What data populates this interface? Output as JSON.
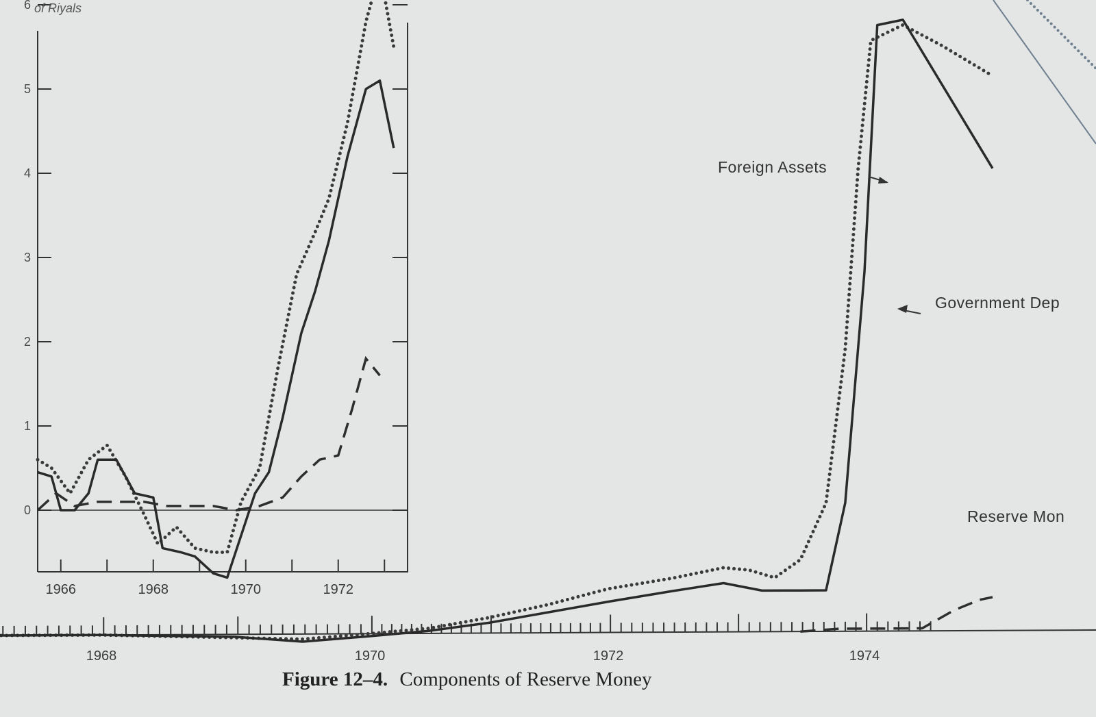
{
  "caption": {
    "label": "Figure 12–4.",
    "title": "Components of Reserve Money"
  },
  "chart_data": [
    {
      "type": "line",
      "panel": "inset",
      "ylabel_fragment": "of Riyals",
      "ylim": [
        -0.75,
        6
      ],
      "yticks": [
        "0",
        "1",
        "2",
        "3",
        "4",
        "5",
        "6"
      ],
      "xticks": [
        "1966",
        "1968",
        "1970",
        "1972"
      ],
      "xlim": [
        1965.5,
        1973.5
      ],
      "series": [
        {
          "style": "dotted",
          "points": [
            [
              1965.5,
              0.6
            ],
            [
              1965.8,
              0.5
            ],
            [
              1966.2,
              0.2
            ],
            [
              1966.6,
              0.6
            ],
            [
              1967.0,
              0.77
            ],
            [
              1967.4,
              0.4
            ],
            [
              1967.8,
              -0.05
            ],
            [
              1968.1,
              -0.4
            ],
            [
              1968.5,
              -0.2
            ],
            [
              1968.9,
              -0.45
            ],
            [
              1969.3,
              -0.5
            ],
            [
              1969.6,
              -0.5
            ],
            [
              1969.9,
              0.1
            ],
            [
              1970.3,
              0.5
            ],
            [
              1970.7,
              1.7
            ],
            [
              1971.1,
              2.8
            ],
            [
              1971.5,
              3.3
            ],
            [
              1971.8,
              3.7
            ],
            [
              1972.2,
              4.6
            ],
            [
              1972.6,
              5.8
            ],
            [
              1972.9,
              6.4
            ],
            [
              1973.2,
              5.5
            ]
          ]
        },
        {
          "style": "solid",
          "points": [
            [
              1965.5,
              0.45
            ],
            [
              1965.8,
              0.4
            ],
            [
              1966.0,
              0.0
            ],
            [
              1966.3,
              0.0
            ],
            [
              1966.6,
              0.2
            ],
            [
              1966.8,
              0.6
            ],
            [
              1967.2,
              0.6
            ],
            [
              1967.6,
              0.2
            ],
            [
              1968.0,
              0.15
            ],
            [
              1968.2,
              -0.45
            ],
            [
              1968.6,
              -0.5
            ],
            [
              1968.9,
              -0.55
            ],
            [
              1969.3,
              -0.75
            ],
            [
              1969.6,
              -0.8
            ],
            [
              1969.9,
              -0.3
            ],
            [
              1970.2,
              0.2
            ],
            [
              1970.5,
              0.45
            ],
            [
              1970.8,
              1.1
            ],
            [
              1971.2,
              2.1
            ],
            [
              1971.5,
              2.6
            ],
            [
              1971.8,
              3.2
            ],
            [
              1972.2,
              4.2
            ],
            [
              1972.6,
              5.0
            ],
            [
              1972.9,
              5.1
            ],
            [
              1973.2,
              4.3
            ]
          ]
        },
        {
          "style": "dashed",
          "points": [
            [
              1965.5,
              0.0
            ],
            [
              1965.9,
              0.2
            ],
            [
              1966.3,
              0.05
            ],
            [
              1966.8,
              0.1
            ],
            [
              1967.3,
              0.1
            ],
            [
              1967.8,
              0.1
            ],
            [
              1968.3,
              0.05
            ],
            [
              1968.8,
              0.05
            ],
            [
              1969.3,
              0.05
            ],
            [
              1969.8,
              0.0
            ],
            [
              1970.3,
              0.05
            ],
            [
              1970.8,
              0.15
            ],
            [
              1971.2,
              0.4
            ],
            [
              1971.6,
              0.6
            ],
            [
              1972.0,
              0.65
            ],
            [
              1972.3,
              1.2
            ],
            [
              1972.6,
              1.8
            ],
            [
              1972.9,
              1.6
            ]
          ]
        }
      ]
    },
    {
      "type": "line",
      "panel": "main",
      "xticks": [
        "1968",
        "1970",
        "1972",
        "1974"
      ],
      "xlim": [
        1966.6,
        1975.0
      ],
      "annotations": {
        "foreign_assets": "Foreign Assets",
        "government_dep": "Government Dep",
        "reserve_money": "Reserve Mon"
      },
      "series": [
        {
          "name": "Foreign Assets",
          "style": "dotted",
          "points": [
            [
              1966.6,
              0.0
            ],
            [
              1968.0,
              0.0
            ],
            [
              1969.5,
              -0.1
            ],
            [
              1970.0,
              0.0
            ],
            [
              1970.5,
              0.1
            ],
            [
              1971.0,
              0.3
            ],
            [
              1971.5,
              0.55
            ],
            [
              1972.0,
              0.85
            ],
            [
              1972.5,
              1.05
            ],
            [
              1972.9,
              1.25
            ],
            [
              1973.1,
              1.2
            ],
            [
              1973.3,
              1.05
            ],
            [
              1973.5,
              1.4
            ],
            [
              1973.7,
              2.5
            ],
            [
              1973.85,
              5.5
            ],
            [
              1973.95,
              9.0
            ],
            [
              1974.05,
              11.5
            ],
            [
              1974.3,
              11.8
            ],
            [
              1974.6,
              11.4
            ],
            [
              1975.0,
              10.8
            ]
          ]
        },
        {
          "name": "Government Dep",
          "style": "solid",
          "points": [
            [
              1966.6,
              0.0
            ],
            [
              1968.0,
              0.0
            ],
            [
              1969.0,
              -0.05
            ],
            [
              1969.5,
              -0.15
            ],
            [
              1970.0,
              -0.05
            ],
            [
              1970.5,
              0.05
            ],
            [
              1971.0,
              0.2
            ],
            [
              1971.5,
              0.4
            ],
            [
              1972.0,
              0.6
            ],
            [
              1972.5,
              0.8
            ],
            [
              1972.9,
              0.95
            ],
            [
              1973.2,
              0.8
            ],
            [
              1973.5,
              0.8
            ],
            [
              1973.7,
              0.8
            ],
            [
              1973.85,
              2.5
            ],
            [
              1974.0,
              7.0
            ],
            [
              1974.1,
              11.8
            ],
            [
              1974.3,
              11.9
            ],
            [
              1975.0,
              9.0
            ]
          ]
        },
        {
          "name": "Reserve Mon",
          "style": "dashed",
          "points": [
            [
              1973.5,
              0.0
            ],
            [
              1973.8,
              0.05
            ],
            [
              1974.2,
              0.05
            ],
            [
              1974.45,
              0.05
            ],
            [
              1974.7,
              0.4
            ],
            [
              1974.9,
              0.6
            ],
            [
              1975.0,
              0.65
            ]
          ]
        }
      ]
    }
  ]
}
